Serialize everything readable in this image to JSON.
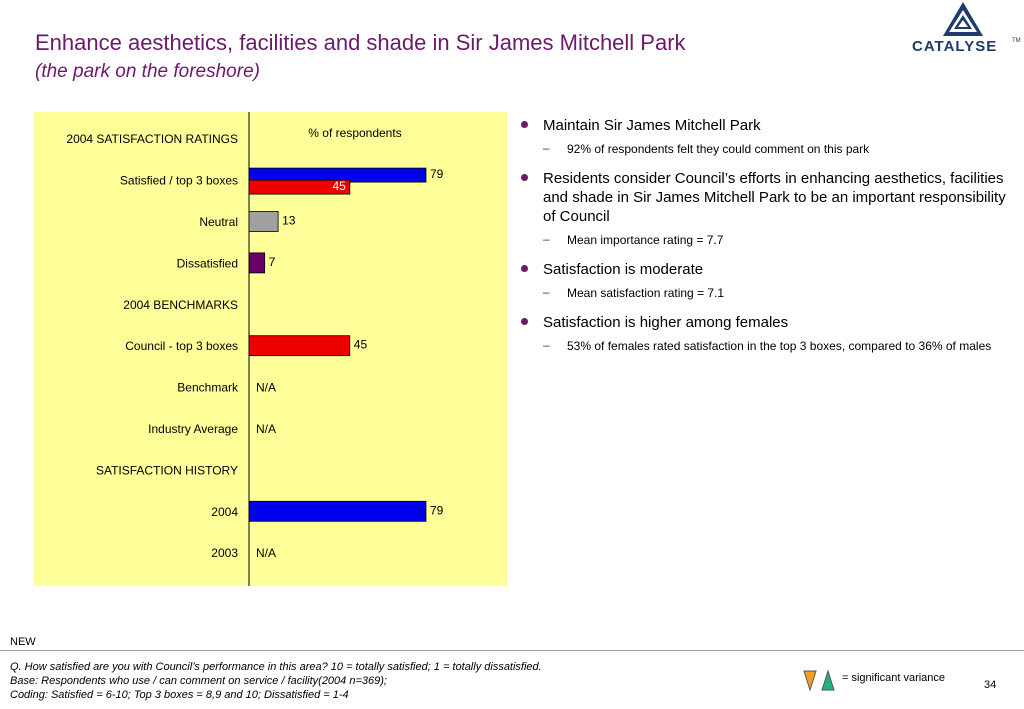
{
  "header": {
    "title": "Enhance aesthetics, facilities and shade in Sir James Mitchell Park",
    "subtitle": "(the park on the foreshore)",
    "logo_text": "CATALYSE",
    "logo_tm": "TM"
  },
  "chart_data": {
    "type": "bar",
    "orientation": "horizontal",
    "unit_label": "% of respondents",
    "xlim": [
      0,
      100
    ],
    "colors": {
      "blue": "#0000ee",
      "red": "#ee0000",
      "gray": "#a0a0a0",
      "purple": "#6b006b",
      "panel": "#ffff99"
    },
    "rows": [
      {
        "label": "2004 SATISFACTION RATINGS",
        "heading": true,
        "bars": []
      },
      {
        "label": "Satisfied / top 3 boxes",
        "bars": [
          {
            "value": 79,
            "text": "79",
            "color": "blue"
          },
          {
            "value": 45,
            "text": "45",
            "color": "red",
            "label_inside": true
          }
        ]
      },
      {
        "label": "Neutral",
        "bars": [
          {
            "value": 13,
            "text": "13",
            "color": "gray"
          }
        ]
      },
      {
        "label": "Dissatisfied",
        "bars": [
          {
            "value": 7,
            "text": "7",
            "color": "purple"
          }
        ]
      },
      {
        "label": "2004 BENCHMARKS",
        "heading": true,
        "bars": []
      },
      {
        "label": "Council - top 3 boxes",
        "bars": [
          {
            "value": 45,
            "text": "45",
            "color": "red"
          }
        ]
      },
      {
        "label": "Benchmark",
        "bars": [],
        "na": "N/A"
      },
      {
        "label": "Industry Average",
        "bars": [],
        "na": "N/A"
      },
      {
        "label": "SATISFACTION HISTORY",
        "heading": true,
        "bars": []
      },
      {
        "label": "2004",
        "bars": [
          {
            "value": 79,
            "text": "79",
            "color": "blue"
          }
        ]
      },
      {
        "label": "2003",
        "bars": [],
        "na": "N/A"
      }
    ]
  },
  "bullets": [
    {
      "text": "Maintain Sir James Mitchell Park",
      "sub": "92% of respondents felt they could comment on this park"
    },
    {
      "text": "Residents consider Council’s efforts in enhancing aesthetics, facilities and shade in Sir James Mitchell Park to be an important responsibility of Council",
      "sub": "Mean importance rating = 7.7"
    },
    {
      "text": "Satisfaction is moderate",
      "sub": "Mean satisfaction rating = 7.1"
    },
    {
      "text": "Satisfaction is higher among females",
      "sub": "53% of females rated satisfaction in the top 3 boxes, compared to 36% of males"
    }
  ],
  "footer": {
    "new_label": "NEW",
    "question": "Q. How satisfied are you with Council’s performance in this area?  10 = totally satisfied; 1 = totally dissatisfied.",
    "base": "Base: Respondents who use / can comment on service / facility(2004 n=369);",
    "coding": "Coding: Satisfied = 6-10; Top 3 boxes = 8,9 and 10; Dissatisfied = 1-4",
    "legend_text": "= significant variance",
    "page_number": "34",
    "legend_colors": {
      "down": "#f0a020",
      "up": "#20b080"
    }
  }
}
